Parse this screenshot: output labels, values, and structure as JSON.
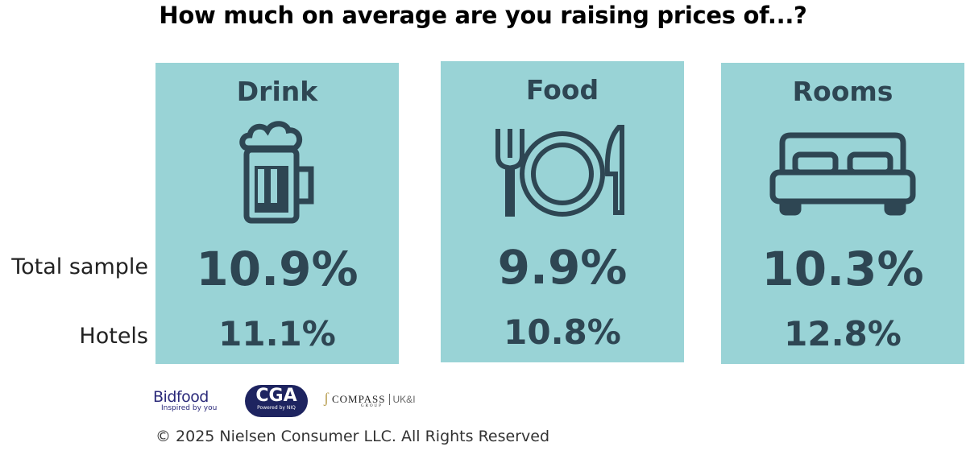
{
  "title": "How much on average are you raising prices of...?",
  "row_labels": {
    "total": "Total sample",
    "hotels": "Hotels"
  },
  "panels": [
    {
      "category": "Drink",
      "icon": "beer-mug-icon",
      "total": "10.9%",
      "hotels": "11.1%"
    },
    {
      "category": "Food",
      "icon": "plate-cutlery-icon",
      "total": "9.9%",
      "hotels": "10.8%"
    },
    {
      "category": "Rooms",
      "icon": "bed-icon",
      "total": "10.3%",
      "hotels": "12.8%"
    }
  ],
  "logos": {
    "bidfood": {
      "name": "Bidfood",
      "tagline": "Inspired by you"
    },
    "cga": {
      "name": "CGA",
      "tagline": "Powered by NIQ"
    },
    "compass": {
      "name": "COMPASS",
      "sub": "GROUP",
      "region": "UK&I"
    }
  },
  "copyright": "© 2025 Nielsen Consumer LLC. All Rights Reserved",
  "colors": {
    "panel": "#99d3d6",
    "text": "#2e4653"
  }
}
